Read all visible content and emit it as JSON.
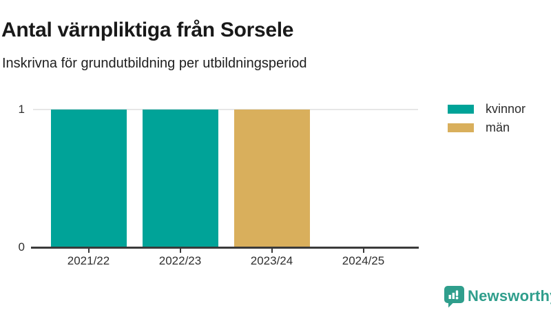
{
  "title": "Antal värnpliktiga från Sorsele",
  "subtitle": "Inskrivna för grundutbildning per utbildningsperiod",
  "chart_data": {
    "type": "bar",
    "stacked": true,
    "title": "Antal värnpliktiga från Sorsele",
    "subtitle": "Inskrivna för grundutbildning per utbildningsperiod",
    "categories": [
      "2021/22",
      "2022/23",
      "2023/24",
      "2024/25"
    ],
    "series": [
      {
        "name": "kvinnor",
        "color": "#00A398",
        "values": [
          1,
          1,
          0,
          0
        ]
      },
      {
        "name": "män",
        "color": "#D9AF5C",
        "values": [
          0,
          0,
          1,
          0
        ]
      }
    ],
    "xlabel": "",
    "ylabel": "",
    "ylim": [
      0,
      1
    ],
    "yticks": [
      0,
      1
    ],
    "grid": "horizontal-gridline-at-1-only",
    "legend_position": "top-right"
  },
  "legend": {
    "items": [
      {
        "label": "kvinnor",
        "color": "#00A398"
      },
      {
        "label": "män",
        "color": "#D9AF5C"
      }
    ]
  },
  "footer": {
    "brand": "Newsworthy",
    "brand_icon": "newsworthy-speech-bubble-barchart-icon",
    "brand_color": "#2F9E8C"
  },
  "colors": {
    "axis_line": "#3A3A3A",
    "grid_line": "#E6E6E6",
    "text": "#191919"
  }
}
